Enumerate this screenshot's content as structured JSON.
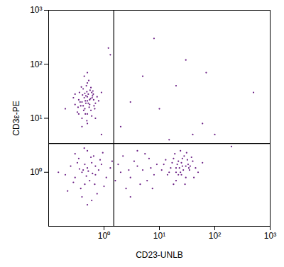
{
  "chart_data": {
    "type": "scatter",
    "x_label": "CD23-UNLB",
    "y_label": "CD3ε-PE",
    "log": true,
    "color": "#6b1f85",
    "xlim": [
      0.1,
      1000
    ],
    "ylim": [
      0.1,
      1000
    ],
    "xticks": [
      {
        "value": 1,
        "label": "10⁰"
      },
      {
        "value": 10,
        "label": "10¹"
      },
      {
        "value": 100,
        "label": "10²"
      },
      {
        "value": 1000,
        "label": "10³"
      }
    ],
    "yticks": [
      {
        "value": 1,
        "label": "10⁰"
      },
      {
        "value": 10,
        "label": "10¹"
      },
      {
        "value": 100,
        "label": "10²"
      },
      {
        "value": 1000,
        "label": "10³"
      }
    ],
    "gates": {
      "x": 1.5,
      "y": 3.4
    },
    "x": [
      0.4,
      0.5,
      0.45,
      0.6,
      0.35,
      0.55,
      0.5,
      0.42,
      0.65,
      0.3,
      0.48,
      0.58,
      0.38,
      0.52,
      0.7,
      0.44,
      0.33,
      0.62,
      0.47,
      0.56,
      0.4,
      0.5,
      0.36,
      0.68,
      0.46,
      0.54,
      0.41,
      0.6,
      0.3,
      0.75,
      0.5,
      0.43,
      0.57,
      0.39,
      0.63,
      0.49,
      0.35,
      0.53,
      0.45,
      0.66,
      0.28,
      0.8,
      0.44,
      0.5,
      0.58,
      0.37,
      0.61,
      0.47,
      0.52,
      0.42,
      0.55,
      0.34,
      0.64,
      0.49,
      0.46,
      0.2,
      0.9,
      0.5,
      0.7,
      0.4,
      0.4,
      0.5,
      0.3,
      0.6,
      0.7,
      0.35,
      0.45,
      0.8,
      0.25,
      0.55,
      0.9,
      1.1,
      0.2,
      0.65,
      0.38,
      0.5,
      0.42,
      0.75,
      0.28,
      1.3,
      0.6,
      0.33,
      0.48,
      0.85,
      0.52,
      0.4,
      0.7,
      0.3,
      1.0,
      0.58,
      0.45,
      0.22,
      0.62,
      0.36,
      0.95,
      0.5,
      0.15,
      1.4,
      0.68,
      0.44,
      2,
      3,
      4,
      2.5,
      5,
      6,
      3.5,
      7,
      8,
      2.2,
      4.5,
      1.8,
      5.5,
      9,
      3,
      6.5,
      2.8,
      4,
      7.5,
      1.6,
      20,
      25,
      15,
      30,
      18,
      22,
      35,
      28,
      12,
      40,
      24,
      20,
      32,
      16,
      26,
      45,
      19,
      30,
      22,
      14,
      38,
      27,
      21,
      50,
      17,
      33,
      24,
      29,
      11,
      36,
      23,
      60,
      13,
      25,
      31,
      20,
      42,
      26,
      18,
      34,
      3,
      10,
      20,
      60,
      100,
      5,
      30,
      1.2,
      200,
      500,
      40,
      2,
      70,
      15,
      0.9,
      8,
      1.3
    ],
    "values": [
      20,
      25,
      15,
      30,
      22,
      18,
      12,
      35,
      22,
      28,
      40,
      14,
      17,
      28,
      19,
      24,
      13,
      26,
      19,
      33,
      10,
      45,
      30,
      15,
      21,
      16,
      27,
      11,
      18,
      25,
      21,
      14,
      23,
      38,
      32,
      9,
      12,
      50,
      29,
      17,
      24,
      21,
      60,
      8,
      37,
      20,
      24,
      26,
      19,
      17,
      22,
      16,
      28,
      31,
      12,
      15,
      30,
      70,
      10,
      7,
      1.0,
      1.2,
      0.8,
      1.5,
      0.9,
      1.8,
      0.6,
      1.1,
      1.3,
      0.7,
      1.4,
      0.8,
      0.9,
      2.0,
      0.5,
      2.5,
      1.1,
      0.4,
      0.65,
      1.2,
      0.3,
      1.5,
      0.85,
      1.7,
      1.05,
      0.35,
      1.3,
      2.2,
      0.55,
      1.9,
      1.4,
      0.45,
      0.95,
      1.15,
      2.3,
      0.25,
      1.0,
      1.6,
      0.6,
      2.8,
      1.0,
      0.8,
      1.3,
      0.5,
      1.1,
      0.7,
      1.6,
      1.2,
      0.9,
      2.0,
      0.6,
      1.4,
      2.2,
      1.4,
      0.35,
      1.8,
      1.1,
      2.5,
      0.5,
      0.7,
      1.2,
      1.5,
      1.0,
      1.3,
      1.8,
      0.9,
      1.1,
      2.0,
      1.4,
      1.6,
      1.0,
      0.7,
      1.7,
      1.2,
      1.3,
      1.2,
      2.2,
      0.8,
      1.6,
      0.9,
      1.9,
      1.1,
      1.4,
      1.0,
      1.5,
      1.4,
      2.5,
      0.6,
      1.1,
      1.3,
      1.2,
      1.5,
      1.7,
      0.9,
      2.3,
      1.0,
      0.8,
      1.8,
      0.6,
      1.2,
      20,
      15,
      40,
      8,
      5,
      60,
      120,
      200,
      3,
      30,
      5,
      7,
      70,
      4,
      5,
      300,
      150
    ]
  }
}
